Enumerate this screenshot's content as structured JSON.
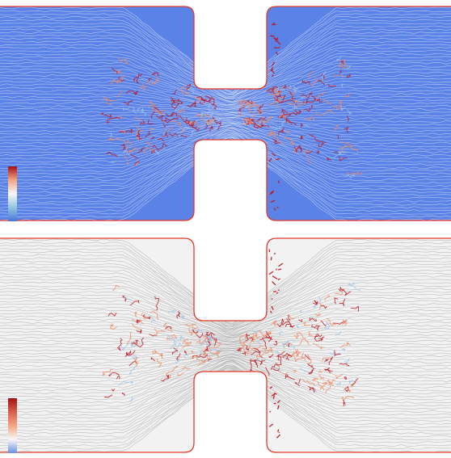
{
  "panels": [
    {
      "id": "top",
      "style": "blue-background-streamlines",
      "background_color": "#5b82e6",
      "line_color": "#ffffff",
      "wall_color": "#e23a2a",
      "colorbar": {
        "colors": [
          "#a50f15",
          "#f4a582",
          "#f7f7f7",
          "#92c5de",
          "#4a74d9"
        ]
      }
    },
    {
      "id": "bottom",
      "style": "grey-streamlines",
      "background_color": "#f2f2f2",
      "line_color": "#8a8a8a",
      "wall_color": "#e23a2a",
      "colorbar": {
        "colors": [
          "#a50f15",
          "#d6604d",
          "#f4a582",
          "#f7f7f7",
          "#6a8fe3"
        ]
      }
    }
  ],
  "accent_colors": {
    "hot": "#c0161d",
    "warm": "#f08a63",
    "cool": "#9ec3ea"
  }
}
